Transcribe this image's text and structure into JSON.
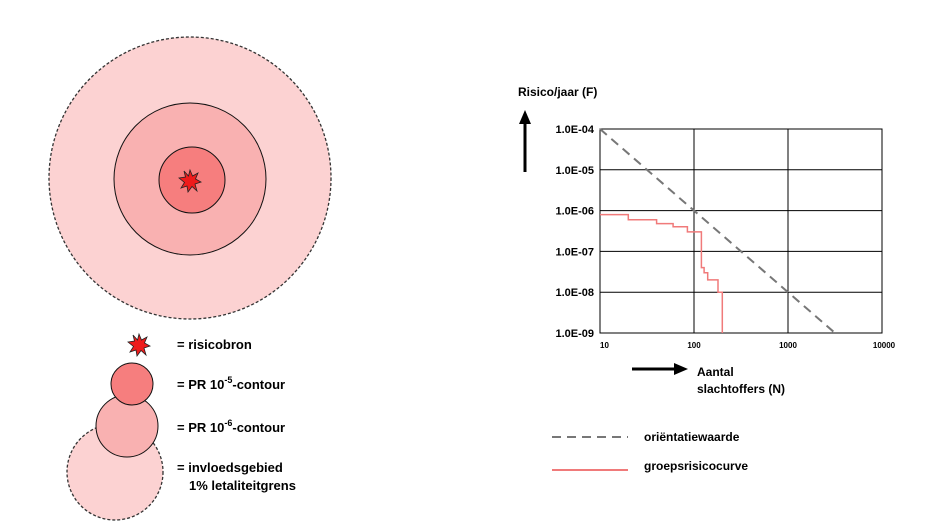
{
  "colors": {
    "zone_outer": "#fcd2d2",
    "zone_mid": "#f9b1b1",
    "zone_inner": "#f67e7e",
    "source": "#ee1b1b",
    "orientation_line": "#777777",
    "group_risk_line": "#f07a7a"
  },
  "legend_left": {
    "source": "= risicobron",
    "pr5_prefix": "= PR 10",
    "pr5_exp": "-5",
    "pr5_suffix": "-contour",
    "pr6_prefix": "= PR 10",
    "pr6_exp": "-6",
    "pr6_suffix": "-contour",
    "influence_line1": "= invloedsgebied",
    "influence_line2": "1% letaliteitgrens"
  },
  "legend_right": {
    "orientation": "oriëntatiewaarde",
    "group_risk": "groepsrisicocurve"
  },
  "chart_data": {
    "type": "line",
    "title": "",
    "ylabel": "Risico/jaar (F)",
    "xlabel_line1": "Aantal",
    "xlabel_line2": "slachtoffers (N)",
    "x_scale": "log",
    "y_scale": "log",
    "xlim": [
      10,
      10000
    ],
    "ylim": [
      1e-09,
      0.0001
    ],
    "x_ticks": [
      "10",
      "100",
      "1000",
      "10000"
    ],
    "y_ticks": [
      "1.0E-09",
      "1.0E-08",
      "1.0E-07",
      "1.0E-06",
      "1.0E-05",
      "1.0E-04"
    ],
    "grid": true,
    "series": [
      {
        "name": "oriëntatiewaarde",
        "style": "dashed",
        "x": [
          10,
          3162
        ],
        "y": [
          0.0001,
          1e-09
        ]
      },
      {
        "name": "groepsrisicocurve",
        "style": "step",
        "x": [
          10,
          20,
          20,
          40,
          40,
          60,
          60,
          85,
          85,
          120,
          120,
          128,
          128,
          140,
          140,
          180,
          180,
          200,
          200
        ],
        "y": [
          8e-07,
          8e-07,
          6e-07,
          6e-07,
          4.8e-07,
          4.8e-07,
          4e-07,
          4e-07,
          3e-07,
          3e-07,
          4e-08,
          4e-08,
          3e-08,
          3e-08,
          2e-08,
          2e-08,
          1e-08,
          1e-08,
          1e-09
        ]
      }
    ]
  }
}
